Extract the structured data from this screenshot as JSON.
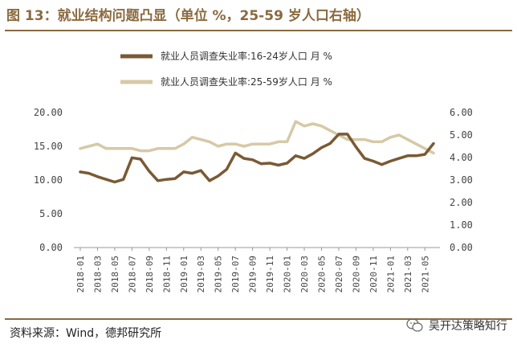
{
  "header": {
    "title": "图 13：就业结构问题凸显（单位 %，25-59 岁人口右轴）"
  },
  "footer": {
    "source": "资料来源：Wind，德邦研究所",
    "watermark": "吴开达策略知行"
  },
  "colors": {
    "accent": "#8b6a3e",
    "series1": "#7a5a34",
    "series2": "#d6c9a6"
  },
  "chart_data": {
    "type": "line",
    "x": [
      "2018-01",
      "2018-02",
      "2018-03",
      "2018-04",
      "2018-05",
      "2018-06",
      "2018-07",
      "2018-08",
      "2018-09",
      "2018-10",
      "2018-11",
      "2018-12",
      "2019-01",
      "2019-02",
      "2019-03",
      "2019-04",
      "2019-05",
      "2019-06",
      "2019-07",
      "2019-08",
      "2019-09",
      "2019-10",
      "2019-11",
      "2019-12",
      "2020-01",
      "2020-02",
      "2020-03",
      "2020-04",
      "2020-05",
      "2020-06",
      "2020-07",
      "2020-08",
      "2020-09",
      "2020-10",
      "2020-11",
      "2020-12",
      "2021-01",
      "2021-02",
      "2021-03",
      "2021-04",
      "2021-05",
      "2021-06"
    ],
    "x_tick_labels": [
      "2018-01",
      "2018-03",
      "2018-05",
      "2018-07",
      "2018-09",
      "2018-11",
      "2019-01",
      "2019-03",
      "2019-05",
      "2019-07",
      "2019-09",
      "2019-11",
      "2020-01",
      "2020-03",
      "2020-05",
      "2020-07",
      "2020-09",
      "2020-11",
      "2021-01",
      "2021-03",
      "2021-05"
    ],
    "series": [
      {
        "name": "就业人员调查失业率:16-24岁人口  月 %",
        "axis": "left",
        "values": [
          11.2,
          11.0,
          10.5,
          10.1,
          9.7,
          10.1,
          13.3,
          13.1,
          11.3,
          9.9,
          10.1,
          10.2,
          11.2,
          11.0,
          11.4,
          9.9,
          10.6,
          11.6,
          14.0,
          13.2,
          13.0,
          12.4,
          12.5,
          12.2,
          12.5,
          13.6,
          13.2,
          13.9,
          14.8,
          15.4,
          16.8,
          16.8,
          14.9,
          13.2,
          12.8,
          12.3,
          12.8,
          13.2,
          13.6,
          13.6,
          13.8,
          15.4
        ]
      },
      {
        "name": "就业人员调查失业率:25-59岁人口  月 %",
        "axis": "right",
        "values": [
          4.4,
          4.5,
          4.6,
          4.4,
          4.4,
          4.4,
          4.4,
          4.3,
          4.3,
          4.4,
          4.4,
          4.4,
          4.6,
          4.9,
          4.8,
          4.7,
          4.5,
          4.6,
          4.6,
          4.5,
          4.6,
          4.6,
          4.6,
          4.7,
          4.7,
          5.6,
          5.4,
          5.5,
          5.4,
          5.2,
          5.0,
          4.8,
          4.8,
          4.8,
          4.7,
          4.7,
          4.9,
          5.0,
          4.8,
          4.6,
          4.4,
          4.2
        ]
      }
    ],
    "y_left": {
      "ylim": [
        0,
        20
      ],
      "ticks": [
        "0.00",
        "5.00",
        "10.00",
        "15.00",
        "20.00"
      ]
    },
    "y_right": {
      "ylim": [
        0,
        6
      ],
      "ticks": [
        "0.00",
        "1.00",
        "2.00",
        "3.00",
        "4.00",
        "5.00",
        "6.00"
      ]
    },
    "grid": false,
    "legend_position": "top-center"
  }
}
